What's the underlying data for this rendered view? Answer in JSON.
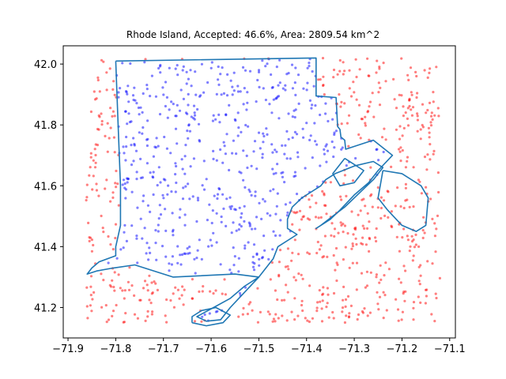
{
  "chart_data": {
    "type": "scatter",
    "title": "Rhode Island, Accepted: 46.6%, Area: 2809.54 km^2",
    "xlabel": "",
    "ylabel": "",
    "xlim": [
      -71.91,
      -71.088
    ],
    "ylim": [
      41.1,
      42.06
    ],
    "xticks": [
      -71.9,
      -71.8,
      -71.7,
      -71.6,
      -71.5,
      -71.4,
      -71.3,
      -71.2,
      -71.1
    ],
    "xtick_labels": [
      "−71.9",
      "−71.8",
      "−71.7",
      "−71.6",
      "−71.5",
      "−71.4",
      "−71.3",
      "−71.2",
      "−71.1"
    ],
    "yticks": [
      41.2,
      41.4,
      41.6,
      41.8,
      42.0
    ],
    "ytick_labels": [
      "41.2",
      "41.4",
      "41.6",
      "41.8",
      "42.0"
    ],
    "grid": false,
    "legend": "none",
    "sample_bounds": {
      "x": [
        -71.862,
        -71.12
      ],
      "y": [
        41.15,
        42.02
      ]
    },
    "accepted_fraction": 0.466,
    "series": [
      {
        "role": "accepted",
        "color": "#0000ff",
        "marker": "dot",
        "count": 560
      },
      {
        "role": "rejected",
        "color": "#ff0000",
        "marker": "dot",
        "count": 640
      }
    ],
    "boundary": {
      "color": "#1f77b4",
      "points": [
        [
          -71.8,
          42.01
        ],
        [
          -71.38,
          42.02
        ],
        [
          -71.38,
          41.895
        ],
        [
          -71.338,
          41.89
        ],
        [
          -71.335,
          41.795
        ],
        [
          -71.33,
          41.785
        ],
        [
          -71.328,
          41.76
        ],
        [
          -71.32,
          41.75
        ],
        [
          -71.318,
          41.72
        ],
        [
          -71.26,
          41.75
        ],
        [
          -71.22,
          41.7
        ],
        [
          -71.25,
          41.65
        ],
        [
          -71.27,
          41.61
        ],
        [
          -71.3,
          41.57
        ],
        [
          -71.33,
          41.52
        ],
        [
          -71.35,
          41.49
        ],
        [
          -71.38,
          41.46
        ],
        [
          -71.37,
          41.47
        ],
        [
          -71.345,
          41.5
        ],
        [
          -71.32,
          41.53
        ],
        [
          -71.3,
          41.56
        ],
        [
          -71.28,
          41.59
        ],
        [
          -71.26,
          41.62
        ],
        [
          -71.24,
          41.66
        ],
        [
          -71.26,
          41.68
        ],
        [
          -71.3,
          41.665
        ],
        [
          -71.34,
          41.64
        ],
        [
          -71.36,
          41.62
        ],
        [
          -71.37,
          41.6
        ],
        [
          -71.39,
          41.58
        ],
        [
          -71.41,
          41.56
        ],
        [
          -71.43,
          41.53
        ],
        [
          -71.44,
          41.49
        ],
        [
          -71.44,
          41.46
        ],
        [
          -71.42,
          41.44
        ],
        [
          -71.46,
          41.4
        ],
        [
          -71.47,
          41.36
        ],
        [
          -71.5,
          41.3
        ],
        [
          -71.53,
          41.25
        ],
        [
          -71.56,
          41.2
        ],
        [
          -71.58,
          41.16
        ],
        [
          -71.61,
          41.155
        ],
        [
          -71.63,
          41.17
        ],
        [
          -71.595,
          41.2
        ],
        [
          -71.56,
          41.23
        ],
        [
          -71.53,
          41.27
        ],
        [
          -71.5,
          41.3
        ],
        [
          -71.55,
          41.31
        ],
        [
          -71.68,
          41.3
        ],
        [
          -71.76,
          41.34
        ],
        [
          -71.805,
          41.33
        ],
        [
          -71.84,
          41.32
        ],
        [
          -71.86,
          41.31
        ],
        [
          -71.85,
          41.33
        ],
        [
          -71.835,
          41.35
        ],
        [
          -71.8,
          41.37
        ],
        [
          -71.8,
          41.4
        ],
        [
          -71.79,
          41.47
        ],
        [
          -71.79,
          41.6
        ],
        [
          -71.795,
          41.8
        ],
        [
          -71.8,
          42.01
        ]
      ]
    },
    "islands": [
      {
        "color": "#1f77b4",
        "points": [
          [
            -71.64,
            41.15
          ],
          [
            -71.61,
            41.14
          ],
          [
            -71.575,
            41.15
          ],
          [
            -71.56,
            41.175
          ],
          [
            -71.59,
            41.2
          ],
          [
            -71.62,
            41.19
          ],
          [
            -71.64,
            41.17
          ],
          [
            -71.64,
            41.15
          ]
        ]
      },
      {
        "color": "#1f77b4",
        "points": [
          [
            -71.24,
            41.65
          ],
          [
            -71.25,
            41.56
          ],
          [
            -71.23,
            41.52
          ],
          [
            -71.2,
            41.47
          ],
          [
            -71.17,
            41.45
          ],
          [
            -71.15,
            41.47
          ],
          [
            -71.145,
            41.56
          ],
          [
            -71.16,
            41.6
          ],
          [
            -71.2,
            41.64
          ],
          [
            -71.24,
            41.65
          ]
        ]
      },
      {
        "color": "#1f77b4",
        "points": [
          [
            -71.32,
            41.69
          ],
          [
            -71.28,
            41.65
          ],
          [
            -71.3,
            41.61
          ],
          [
            -71.33,
            41.6
          ],
          [
            -71.345,
            41.64
          ],
          [
            -71.32,
            41.69
          ]
        ]
      }
    ]
  }
}
